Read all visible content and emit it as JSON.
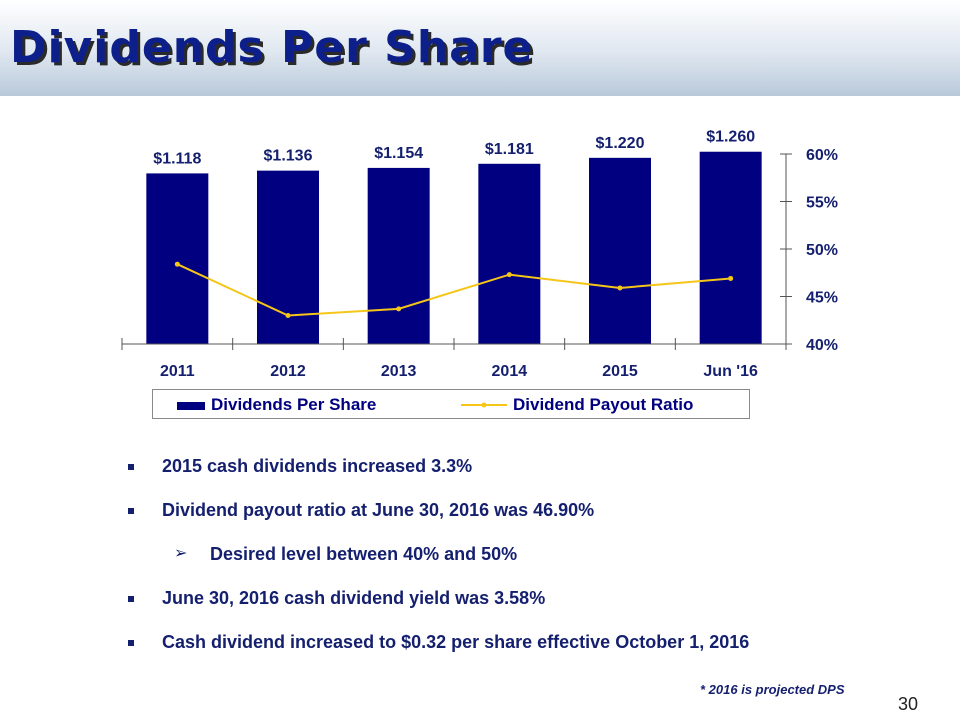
{
  "slide": {
    "title": "Dividends Per Share",
    "page_number": "30",
    "footnote": "* 2016 is projected DPS"
  },
  "chart_data": {
    "type": "bar",
    "categories": [
      "2011",
      "2012",
      "2013",
      "2014",
      "2015",
      "Jun '16"
    ],
    "series": [
      {
        "name": "Dividends Per Share",
        "type": "bar",
        "axis": "left",
        "values": [
          1.118,
          1.136,
          1.154,
          1.181,
          1.22,
          1.26
        ],
        "labels": [
          "$1.118",
          "$1.136",
          "$1.154",
          "$1.181",
          "$1.220",
          "$1.260"
        ],
        "color": "#000080"
      },
      {
        "name": "Dividend Payout Ratio",
        "type": "line",
        "axis": "right",
        "values": [
          48.4,
          43.0,
          43.7,
          47.3,
          45.9,
          46.9
        ],
        "color": "#f5c518"
      }
    ],
    "right_axis": {
      "ylim": [
        40,
        60
      ],
      "ticks": [
        60,
        55,
        50,
        45,
        40
      ],
      "tick_labels": [
        "60%",
        "55%",
        "50%",
        "45%",
        "40%"
      ]
    },
    "left_axis_ylim": [
      0,
      1.35
    ],
    "legend_placement": "bottom",
    "grid": false
  },
  "bullets": [
    {
      "text": "2015 cash dividends increased 3.3%",
      "level": 1
    },
    {
      "text": "Dividend payout ratio at June 30, 2016 was 46.90%",
      "level": 1
    },
    {
      "text": "Desired level between 40% and 50%",
      "level": 2
    },
    {
      "text": "June 30, 2016 cash dividend yield was 3.58%",
      "level": 1
    },
    {
      "text": "Cash dividend increased to $0.32 per share effective October 1, 2016",
      "level": 1
    }
  ]
}
